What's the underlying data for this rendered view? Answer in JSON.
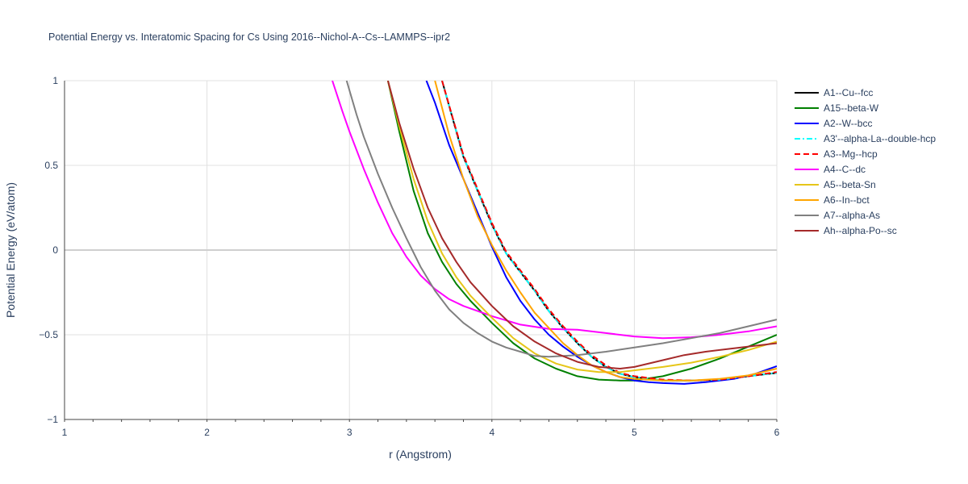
{
  "chart_data": {
    "type": "line",
    "title": "Potential Energy vs. Interatomic Spacing for Cs Using 2016--Nichol-A--Cs--LAMMPS--ipr2",
    "xlabel": "r (Angstrom)",
    "ylabel": "Potential Energy (eV/atom)",
    "xlim": [
      1,
      6
    ],
    "ylim": [
      -1,
      1
    ],
    "xticks": [
      1,
      2,
      3,
      4,
      5,
      6
    ],
    "yticks": [
      -1,
      -0.5,
      0,
      0.5,
      1
    ],
    "ytick_labels": [
      "−1",
      "−0.5",
      "0",
      "0.5",
      "1"
    ],
    "grid": true,
    "legend_position": "right",
    "series": [
      {
        "name": "A1--Cu--fcc",
        "color": "#000000",
        "dash": "solid",
        "x": [
          3.65,
          3.8,
          3.9,
          4.0,
          4.1,
          4.2,
          4.3,
          4.4,
          4.5,
          4.6,
          4.7,
          4.8,
          4.9,
          5.0,
          5.2,
          5.4,
          5.6,
          5.8,
          6.0
        ],
        "y": [
          1.0,
          0.55,
          0.35,
          0.15,
          -0.02,
          -0.13,
          -0.24,
          -0.36,
          -0.46,
          -0.55,
          -0.63,
          -0.69,
          -0.73,
          -0.75,
          -0.77,
          -0.77,
          -0.765,
          -0.745,
          -0.725
        ]
      },
      {
        "name": "A15--beta-W",
        "color": "#008000",
        "dash": "solid",
        "x": [
          3.27,
          3.35,
          3.45,
          3.55,
          3.65,
          3.75,
          3.85,
          4.0,
          4.15,
          4.3,
          4.45,
          4.6,
          4.75,
          4.9,
          5.0,
          5.2,
          5.4,
          5.6,
          5.8,
          6.0
        ],
        "y": [
          1.0,
          0.7,
          0.35,
          0.1,
          -0.07,
          -0.2,
          -0.3,
          -0.43,
          -0.55,
          -0.64,
          -0.7,
          -0.745,
          -0.765,
          -0.77,
          -0.77,
          -0.745,
          -0.7,
          -0.64,
          -0.57,
          -0.5
        ]
      },
      {
        "name": "A2--W--bcc",
        "color": "#0000ff",
        "dash": "solid",
        "x": [
          3.54,
          3.6,
          3.7,
          3.8,
          3.9,
          4.0,
          4.1,
          4.2,
          4.3,
          4.4,
          4.5,
          4.6,
          4.7,
          4.8,
          4.9,
          5.0,
          5.1,
          5.2,
          5.35,
          5.5,
          5.7,
          5.85,
          6.0
        ],
        "y": [
          1.0,
          0.87,
          0.62,
          0.42,
          0.22,
          0.02,
          -0.16,
          -0.3,
          -0.41,
          -0.5,
          -0.57,
          -0.63,
          -0.68,
          -0.72,
          -0.75,
          -0.77,
          -0.78,
          -0.785,
          -0.79,
          -0.78,
          -0.76,
          -0.73,
          -0.685
        ]
      },
      {
        "name": "A3'--alpha-La--double-hcp",
        "color": "#00ffff",
        "dash": "dashdot",
        "x": [
          3.65,
          3.8,
          3.9,
          4.0,
          4.1,
          4.2,
          4.3,
          4.4,
          4.5,
          4.6,
          4.7,
          4.8,
          4.9,
          5.0,
          5.2,
          5.4,
          5.6,
          5.8,
          6.0
        ],
        "y": [
          1.0,
          0.55,
          0.35,
          0.15,
          -0.02,
          -0.13,
          -0.24,
          -0.36,
          -0.46,
          -0.55,
          -0.63,
          -0.69,
          -0.73,
          -0.75,
          -0.77,
          -0.77,
          -0.765,
          -0.745,
          -0.725
        ]
      },
      {
        "name": "A3--Mg--hcp",
        "color": "#ff0000",
        "dash": "dash",
        "x": [
          3.65,
          3.8,
          3.9,
          4.0,
          4.1,
          4.2,
          4.3,
          4.4,
          4.5,
          4.6,
          4.7,
          4.8,
          4.9,
          5.0,
          5.2,
          5.4,
          5.6,
          5.8,
          6.0
        ],
        "y": [
          1.0,
          0.56,
          0.36,
          0.16,
          -0.01,
          -0.12,
          -0.23,
          -0.35,
          -0.45,
          -0.54,
          -0.62,
          -0.68,
          -0.725,
          -0.745,
          -0.765,
          -0.77,
          -0.765,
          -0.745,
          -0.72
        ]
      },
      {
        "name": "A4--C--dc",
        "color": "#ff00ff",
        "dash": "solid",
        "x": [
          2.88,
          2.95,
          3.0,
          3.1,
          3.2,
          3.3,
          3.4,
          3.5,
          3.6,
          3.7,
          3.8,
          3.9,
          4.0,
          4.2,
          4.4,
          4.6,
          4.8,
          5.0,
          5.2,
          5.4,
          5.6,
          5.8,
          6.0
        ],
        "y": [
          1.0,
          0.82,
          0.7,
          0.48,
          0.28,
          0.1,
          -0.04,
          -0.15,
          -0.23,
          -0.29,
          -0.33,
          -0.36,
          -0.39,
          -0.44,
          -0.465,
          -0.47,
          -0.49,
          -0.51,
          -0.52,
          -0.515,
          -0.5,
          -0.48,
          -0.45
        ]
      },
      {
        "name": "A5--beta-Sn",
        "color": "#e6c619",
        "dash": "solid",
        "x": [
          3.27,
          3.35,
          3.45,
          3.55,
          3.65,
          3.75,
          3.85,
          4.0,
          4.15,
          4.3,
          4.45,
          4.6,
          4.75,
          4.9,
          5.0,
          5.2,
          5.4,
          5.6,
          5.8,
          6.0
        ],
        "y": [
          1.0,
          0.73,
          0.42,
          0.17,
          -0.02,
          -0.16,
          -0.27,
          -0.4,
          -0.52,
          -0.61,
          -0.67,
          -0.705,
          -0.72,
          -0.72,
          -0.71,
          -0.69,
          -0.665,
          -0.63,
          -0.59,
          -0.54
        ]
      },
      {
        "name": "A6--In--bct",
        "color": "#ffa500",
        "dash": "solid",
        "x": [
          3.6,
          3.7,
          3.8,
          3.9,
          4.0,
          4.1,
          4.2,
          4.3,
          4.4,
          4.5,
          4.6,
          4.7,
          4.8,
          4.9,
          5.0,
          5.2,
          5.4,
          5.6,
          5.8,
          6.0
        ],
        "y": [
          1.0,
          0.68,
          0.42,
          0.2,
          0.03,
          -0.12,
          -0.25,
          -0.37,
          -0.46,
          -0.55,
          -0.62,
          -0.68,
          -0.72,
          -0.75,
          -0.76,
          -0.77,
          -0.77,
          -0.76,
          -0.74,
          -0.7
        ]
      },
      {
        "name": "A7--alpha-As",
        "color": "#808080",
        "dash": "solid",
        "x": [
          2.98,
          3.05,
          3.1,
          3.2,
          3.3,
          3.4,
          3.5,
          3.6,
          3.7,
          3.8,
          3.9,
          4.0,
          4.1,
          4.2,
          4.3,
          4.4,
          4.6,
          4.8,
          5.0,
          5.2,
          5.4,
          5.6,
          5.8,
          6.0
        ],
        "y": [
          1.0,
          0.8,
          0.67,
          0.45,
          0.25,
          0.07,
          -0.1,
          -0.24,
          -0.35,
          -0.43,
          -0.49,
          -0.54,
          -0.575,
          -0.6,
          -0.625,
          -0.63,
          -0.62,
          -0.6,
          -0.575,
          -0.55,
          -0.52,
          -0.49,
          -0.45,
          -0.41
        ]
      },
      {
        "name": "Ah--alpha-Po--sc",
        "color": "#a52a2a",
        "dash": "solid",
        "x": [
          3.27,
          3.35,
          3.45,
          3.55,
          3.65,
          3.75,
          3.85,
          4.0,
          4.15,
          4.3,
          4.45,
          4.6,
          4.75,
          4.9,
          5.0,
          5.2,
          5.35,
          5.5,
          5.7,
          6.0
        ],
        "y": [
          1.0,
          0.75,
          0.48,
          0.25,
          0.07,
          -0.07,
          -0.19,
          -0.33,
          -0.45,
          -0.54,
          -0.61,
          -0.66,
          -0.69,
          -0.7,
          -0.69,
          -0.65,
          -0.62,
          -0.6,
          -0.58,
          -0.55
        ]
      }
    ]
  }
}
